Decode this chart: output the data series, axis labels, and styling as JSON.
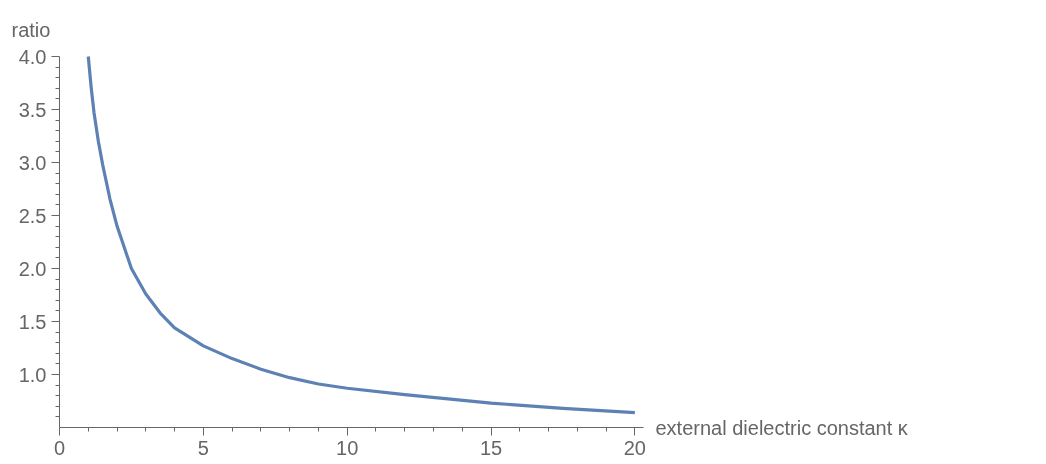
{
  "chart_data": {
    "type": "line",
    "xlabel": "external dielectric constant κ",
    "ylabel": "ratio",
    "x": [
      1,
      1.1,
      1.2,
      1.35,
      1.5,
      1.75,
      2,
      2.5,
      3,
      3.5,
      4,
      5,
      6,
      7,
      8,
      9,
      10,
      12,
      15,
      17.5,
      20
    ],
    "series": [
      {
        "color": "#5e81b5",
        "values": [
          4.0,
          3.71,
          3.47,
          3.2,
          2.98,
          2.66,
          2.4,
          2.0,
          1.76,
          1.58,
          1.44,
          1.27,
          1.15,
          1.05,
          0.97,
          0.91,
          0.87,
          0.81,
          0.73,
          0.68,
          0.64
        ]
      }
    ],
    "xlim": [
      0,
      20.3
    ],
    "ylim": [
      0.5,
      4.0
    ],
    "xticks": [
      0,
      5,
      10,
      15,
      20,
      {
        "value": 1,
        "label": null
      },
      {
        "value": 2,
        "label": null
      },
      {
        "value": 3,
        "label": null
      },
      {
        "value": 4,
        "label": null
      },
      {
        "value": 6,
        "label": null
      },
      {
        "value": 7,
        "label": null
      },
      {
        "value": 8,
        "label": null
      },
      {
        "value": 9,
        "label": null
      },
      {
        "value": 11,
        "label": null
      },
      {
        "value": 12,
        "label": null
      },
      {
        "value": 13,
        "label": null
      },
      {
        "value": 14,
        "label": null
      },
      {
        "value": 16,
        "label": null
      },
      {
        "value": 17,
        "label": null
      },
      {
        "value": 18,
        "label": null
      },
      {
        "value": 19,
        "label": null
      }
    ],
    "yticks": [
      {
        "value": 1.0,
        "label": "1.0"
      },
      1.5,
      {
        "value": 2.0,
        "label": "2.0"
      },
      2.5,
      {
        "value": 3.0,
        "label": "3.0"
      },
      3.5,
      {
        "value": 4.0,
        "label": "4.0"
      },
      {
        "value": 0.6,
        "label": null
      },
      {
        "value": 0.7,
        "label": null
      },
      {
        "value": 0.8,
        "label": null
      },
      {
        "value": 0.9,
        "label": null
      },
      {
        "value": 1.1,
        "label": null
      },
      {
        "value": 1.2,
        "label": null
      },
      {
        "value": 1.3,
        "label": null
      },
      {
        "value": 1.4,
        "label": null
      },
      {
        "value": 1.6,
        "label": null
      },
      {
        "value": 1.7,
        "label": null
      },
      {
        "value": 1.8,
        "label": null
      },
      {
        "value": 1.9,
        "label": null
      },
      {
        "value": 2.1,
        "label": null
      },
      {
        "value": 2.2,
        "label": null
      },
      {
        "value": 2.3,
        "label": null
      },
      {
        "value": 2.4,
        "label": null
      },
      {
        "value": 2.6,
        "label": null
      },
      {
        "value": 2.7,
        "label": null
      },
      {
        "value": 2.8,
        "label": null
      },
      {
        "value": 2.9,
        "label": null
      },
      {
        "value": 3.1,
        "label": null
      },
      {
        "value": 3.2,
        "label": null
      },
      {
        "value": 3.3,
        "label": null
      },
      {
        "value": 3.4,
        "label": null
      },
      {
        "value": 3.6,
        "label": null
      },
      {
        "value": 3.7,
        "label": null
      },
      {
        "value": 3.8,
        "label": null
      },
      {
        "value": 3.9,
        "label": null
      }
    ],
    "grid": false,
    "marker": "none",
    "line_style": "solid"
  }
}
